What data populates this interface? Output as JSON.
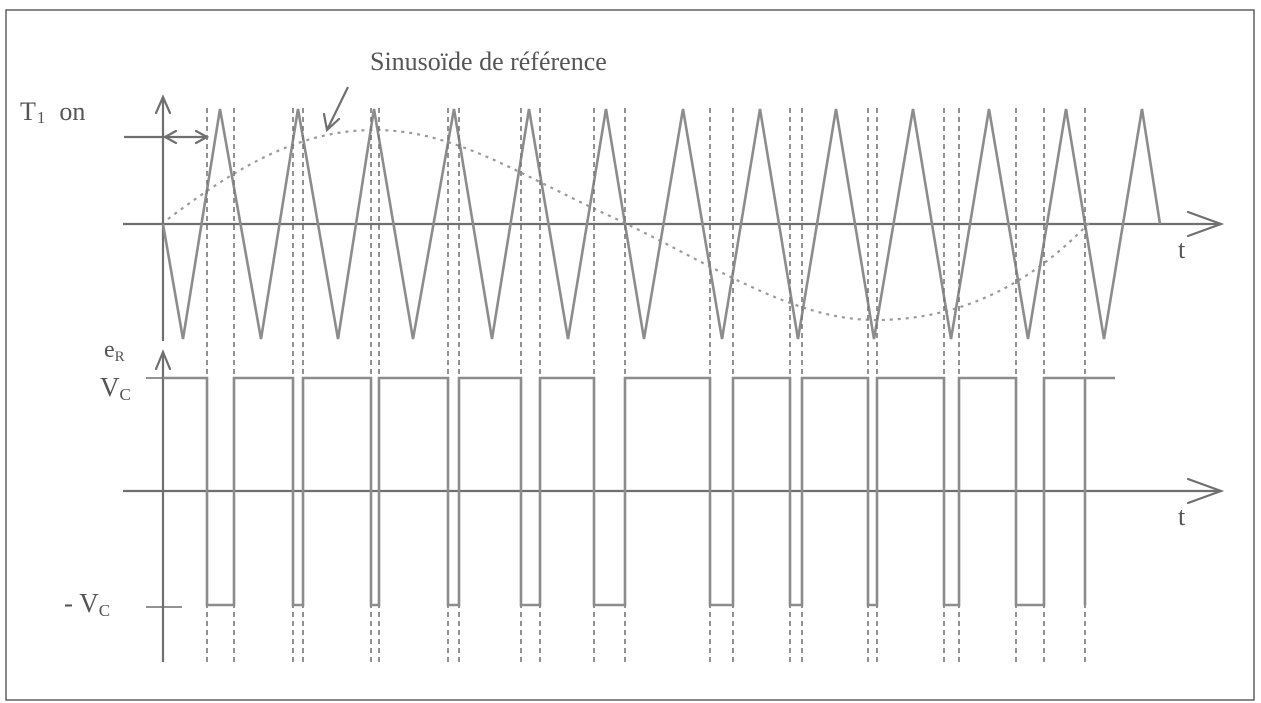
{
  "labels": {
    "sine_reference": "Sinusoïde de référence",
    "t1_on": {
      "main": "T",
      "sub": "1",
      "suffix": "on"
    },
    "time_axis_top": "t",
    "time_axis_bottom": "t",
    "er": {
      "main": "e",
      "sub": "R"
    },
    "vc": {
      "main": "V",
      "sub": "C"
    },
    "minus_vc": {
      "prefix": "- ",
      "main": "V",
      "sub": "C"
    }
  },
  "colors": {
    "wave": "#8c8c8c",
    "axis": "#6f6f6f",
    "text": "#555555"
  },
  "signals": {
    "carrier_periods": 13,
    "output_levels": [
      "+Vc",
      "-Vc"
    ]
  }
}
